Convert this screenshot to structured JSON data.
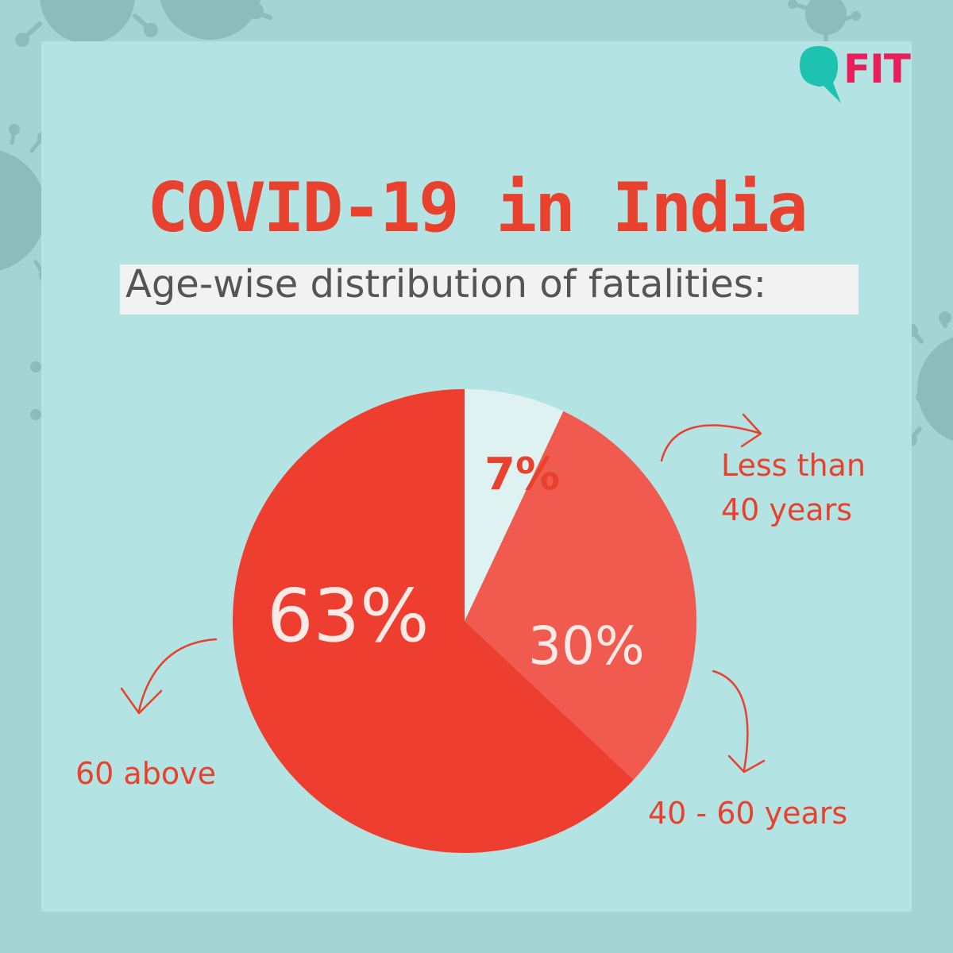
{
  "brand": {
    "logo_text": "FIT"
  },
  "title": "COVID-19 in India",
  "subtitle": "Age-wise distribution of fatalities:",
  "colors": {
    "background": "#a6d4d4",
    "panel": "#b4e3e3",
    "accent": "#e8412e",
    "slice_under40": "#def2f1",
    "slice_40_60": "#f05a4f",
    "slice_60_above": "#ed3e2f",
    "logo_teal": "#1ec2b0",
    "logo_pink": "#e91e5b"
  },
  "chart_data": {
    "type": "pie",
    "title": "COVID-19 in India",
    "subtitle": "Age-wise distribution of fatalities:",
    "slices": [
      {
        "label": "Less than 40 years",
        "value": 7,
        "display": "7%",
        "color": "#def2f1"
      },
      {
        "label": "40 - 60 years",
        "value": 30,
        "display": "30%",
        "color": "#f05a4f"
      },
      {
        "label": "60 above",
        "value": 63,
        "display": "63%",
        "color": "#ed3e2f"
      }
    ]
  },
  "labels": {
    "under40_line1": "Less than",
    "under40_line2": "40 years",
    "middle": "40 - 60 years",
    "above60": "60 above"
  },
  "icons": [
    "virus-icon",
    "fit-logo-icon",
    "curved-arrow-icon"
  ]
}
